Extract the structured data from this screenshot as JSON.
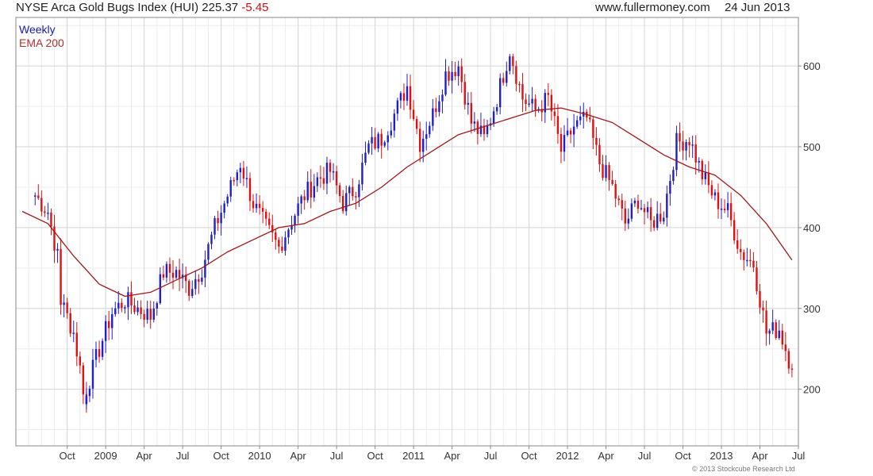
{
  "header": {
    "title": "NYSE Arca Gold Bugs Index (HUI)",
    "last": "225.37",
    "change": "-5.45",
    "site": "www.fullermoney.com",
    "date": "24 Jun 2013"
  },
  "legend": {
    "weekly": "Weekly",
    "ema": "EMA 200"
  },
  "copyright": "© 2013 Stockcube Research Ltd",
  "colors": {
    "up": "#1f1fcc",
    "down": "#e01010",
    "ema": "#a01818",
    "grid": "#d6d6d6",
    "frame": "#888888"
  },
  "chart_data": {
    "type": "line",
    "y_axis": {
      "position": "right",
      "min": 130,
      "max": 660,
      "ticks": [
        200,
        300,
        400,
        500,
        600
      ]
    },
    "x_axis": {
      "ticks": [
        "Oct",
        "2009",
        "Apr",
        "Jul",
        "Oct",
        "2010",
        "Apr",
        "Jul",
        "Oct",
        "2011",
        "Apr",
        "Jul",
        "Oct",
        "2012",
        "Apr",
        "Jul",
        "Oct",
        "2013",
        "Apr",
        "Jul"
      ],
      "range": [
        "2008-06",
        "2013-07"
      ]
    },
    "grid": true,
    "series": [
      {
        "name": "Weekly",
        "style": "ohlc-bars",
        "anchor_points": [
          [
            "2008-07",
            440
          ],
          [
            "2008-08",
            420
          ],
          [
            "2008-09",
            345
          ],
          [
            "2008-09",
            310
          ],
          [
            "2008-10",
            270
          ],
          [
            "2008-11",
            180
          ],
          [
            "2008-11",
            200
          ],
          [
            "2008-12",
            250
          ],
          [
            "2009-01",
            295
          ],
          [
            "2009-02",
            310
          ],
          [
            "2009-03",
            300
          ],
          [
            "2009-04",
            290
          ],
          [
            "2009-05",
            345
          ],
          [
            "2009-06",
            345
          ],
          [
            "2009-07",
            325
          ],
          [
            "2009-08",
            350
          ],
          [
            "2009-09",
            400
          ],
          [
            "2009-10",
            440
          ],
          [
            "2009-11",
            480
          ],
          [
            "2009-12",
            430
          ],
          [
            "2010-01",
            400
          ],
          [
            "2010-02",
            375
          ],
          [
            "2010-03",
            410
          ],
          [
            "2010-04",
            440
          ],
          [
            "2010-05",
            460
          ],
          [
            "2010-06",
            470
          ],
          [
            "2010-07",
            430
          ],
          [
            "2010-08",
            450
          ],
          [
            "2010-09",
            500
          ],
          [
            "2010-10",
            510
          ],
          [
            "2010-11",
            540
          ],
          [
            "2010-12",
            575
          ],
          [
            "2011-01",
            505
          ],
          [
            "2011-02",
            540
          ],
          [
            "2011-03",
            590
          ],
          [
            "2011-04",
            600
          ],
          [
            "2011-05",
            530
          ],
          [
            "2011-06",
            510
          ],
          [
            "2011-07",
            560
          ],
          [
            "2011-08",
            620
          ],
          [
            "2011-09",
            560
          ],
          [
            "2011-10",
            545
          ],
          [
            "2011-11",
            560
          ],
          [
            "2011-12",
            495
          ],
          [
            "2012-01",
            525
          ],
          [
            "2012-02",
            535
          ],
          [
            "2012-03",
            480
          ],
          [
            "2012-04",
            450
          ],
          [
            "2012-05",
            405
          ],
          [
            "2012-06",
            435
          ],
          [
            "2012-07",
            405
          ],
          [
            "2012-08",
            420
          ],
          [
            "2012-09",
            505
          ],
          [
            "2012-10",
            510
          ],
          [
            "2012-11",
            465
          ],
          [
            "2012-12",
            435
          ],
          [
            "2013-01",
            420
          ],
          [
            "2013-02",
            370
          ],
          [
            "2013-03",
            355
          ],
          [
            "2013-04",
            270
          ],
          [
            "2013-05",
            275
          ],
          [
            "2013-06",
            225.37
          ]
        ]
      },
      {
        "name": "EMA 200",
        "style": "line",
        "anchor_points": [
          [
            "2008-06",
            420
          ],
          [
            "2008-08",
            405
          ],
          [
            "2008-10",
            365
          ],
          [
            "2008-12",
            330
          ],
          [
            "2009-02",
            315
          ],
          [
            "2009-04",
            320
          ],
          [
            "2009-06",
            335
          ],
          [
            "2009-08",
            350
          ],
          [
            "2009-10",
            370
          ],
          [
            "2009-12",
            385
          ],
          [
            "2010-02",
            400
          ],
          [
            "2010-04",
            405
          ],
          [
            "2010-06",
            420
          ],
          [
            "2010-08",
            430
          ],
          [
            "2010-10",
            450
          ],
          [
            "2010-12",
            475
          ],
          [
            "2011-02",
            495
          ],
          [
            "2011-04",
            515
          ],
          [
            "2011-06",
            525
          ],
          [
            "2011-08",
            535
          ],
          [
            "2011-10",
            545
          ],
          [
            "2011-12",
            548
          ],
          [
            "2012-02",
            540
          ],
          [
            "2012-04",
            530
          ],
          [
            "2012-06",
            510
          ],
          [
            "2012-08",
            490
          ],
          [
            "2012-10",
            475
          ],
          [
            "2012-12",
            465
          ],
          [
            "2013-02",
            440
          ],
          [
            "2013-04",
            405
          ],
          [
            "2013-06",
            360
          ]
        ]
      }
    ]
  }
}
